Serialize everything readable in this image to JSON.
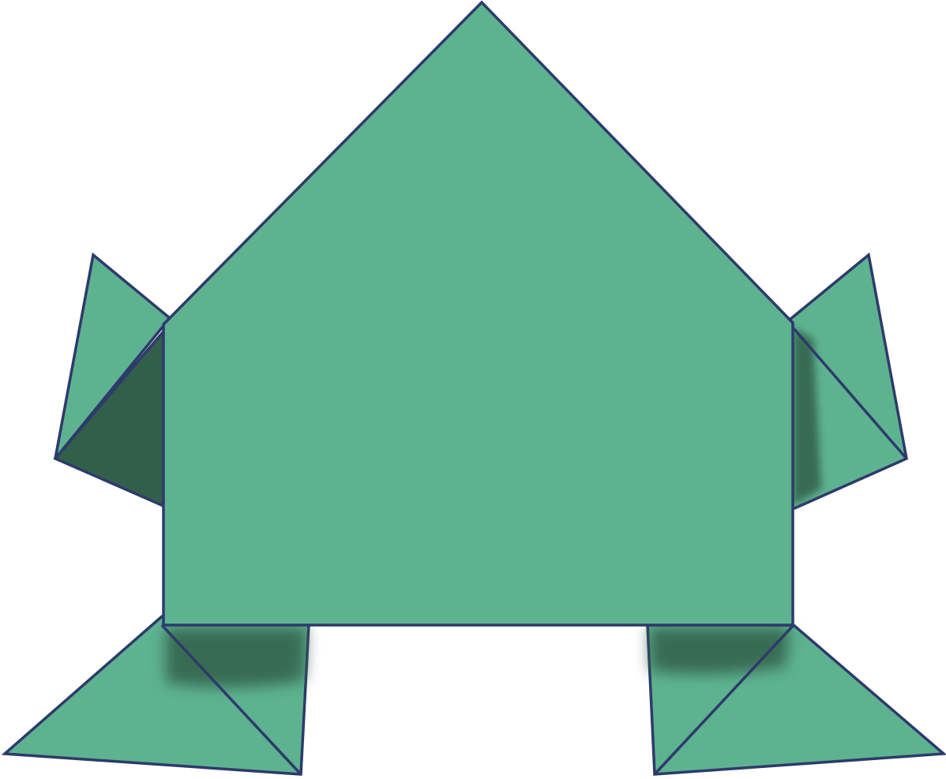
{
  "figure": {
    "subject": "origami frog",
    "colors": {
      "paper": "#5db390",
      "shadow": "#325f4a",
      "outline": "#2e3a6b",
      "background": "#ffffff"
    }
  }
}
